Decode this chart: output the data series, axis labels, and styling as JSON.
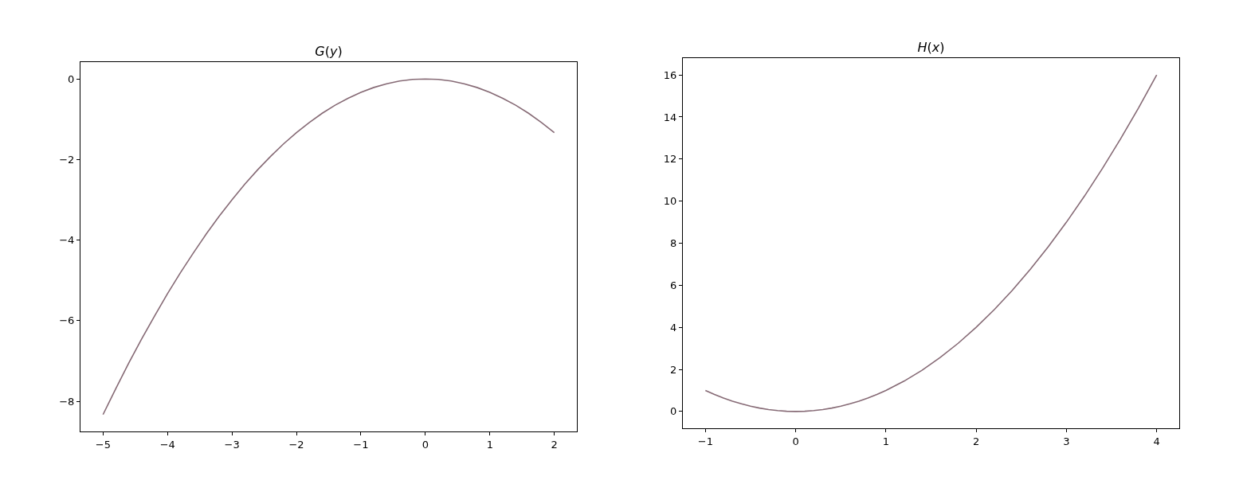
{
  "chart_data": [
    {
      "type": "line",
      "title": "G(y)",
      "color": "#866a75",
      "x": [
        -5,
        -4.8,
        -4.6,
        -4.4,
        -4.2,
        -4,
        -3.8,
        -3.6,
        -3.4,
        -3.2,
        -3,
        -2.8,
        -2.6,
        -2.4,
        -2.2,
        -2,
        -1.8,
        -1.6,
        -1.4,
        -1.2,
        -1,
        -0.8,
        -0.6,
        -0.4,
        -0.2,
        0,
        0.2,
        0.4,
        0.6,
        0.8,
        1,
        1.2,
        1.4,
        1.6,
        1.8,
        2
      ],
      "values": [
        -8.33,
        -7.68,
        -7.05,
        -6.45,
        -5.88,
        -5.33,
        -4.81,
        -4.32,
        -3.85,
        -3.41,
        -3,
        -2.61,
        -2.25,
        -1.92,
        -1.61,
        -1.33,
        -1.08,
        -0.85,
        -0.65,
        -0.48,
        -0.33,
        -0.21,
        -0.12,
        -0.05,
        -0.01,
        0,
        -0.01,
        -0.05,
        -0.12,
        -0.21,
        -0.33,
        -0.48,
        -0.65,
        -0.85,
        -1.08,
        -1.33
      ],
      "xlim": [
        -5.35,
        2.35
      ],
      "ylim": [
        -8.75,
        0.42
      ],
      "xticks": [
        -5,
        -4,
        -3,
        -2,
        -1,
        0,
        1,
        2
      ],
      "yticks": [
        -8,
        -6,
        -4,
        -2,
        0
      ]
    },
    {
      "type": "line",
      "title": "H(x)",
      "color": "#866a75",
      "x": [
        -1,
        -0.9,
        -0.8,
        -0.7,
        -0.6,
        -0.5,
        -0.4,
        -0.3,
        -0.2,
        -0.1,
        0,
        0.1,
        0.2,
        0.3,
        0.4,
        0.5,
        0.6,
        0.7,
        0.8,
        0.9,
        1,
        1.2,
        1.4,
        1.6,
        1.8,
        2,
        2.2,
        2.4,
        2.6,
        2.8,
        3,
        3.2,
        3.4,
        3.6,
        3.8,
        4
      ],
      "values": [
        1,
        0.81,
        0.64,
        0.49,
        0.36,
        0.25,
        0.16,
        0.09,
        0.04,
        0.01,
        0,
        0.01,
        0.04,
        0.09,
        0.16,
        0.25,
        0.36,
        0.49,
        0.64,
        0.81,
        1,
        1.44,
        1.96,
        2.56,
        3.24,
        4,
        4.84,
        5.76,
        6.76,
        7.84,
        9,
        10.24,
        11.56,
        12.96,
        14.44,
        16
      ],
      "xlim": [
        -1.25,
        4.25
      ],
      "ylim": [
        -0.8,
        16.8
      ],
      "xticks": [
        -1,
        0,
        1,
        2,
        3,
        4
      ],
      "yticks": [
        0,
        2,
        4,
        6,
        8,
        10,
        12,
        14,
        16
      ]
    }
  ]
}
